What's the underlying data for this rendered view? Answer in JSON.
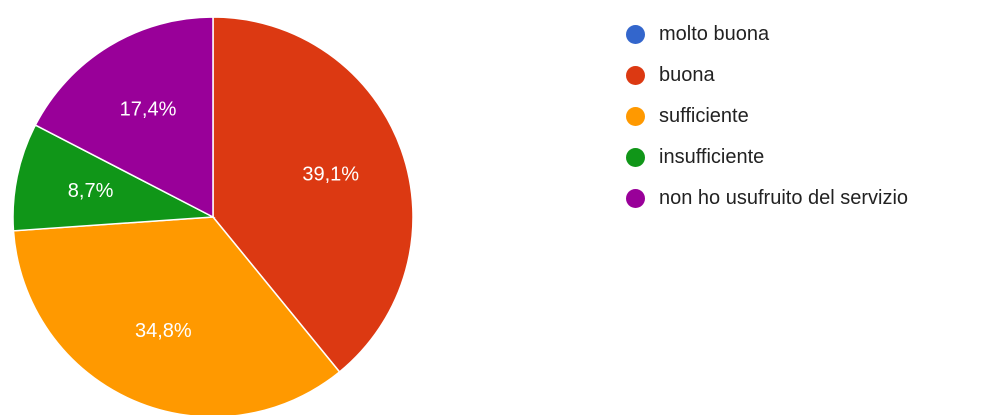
{
  "chart_data": {
    "type": "pie",
    "categories": [
      "molto buona",
      "buona",
      "sufficiente",
      "insufficiente",
      "non ho usufruito del servizio"
    ],
    "values": [
      0,
      39.1,
      34.8,
      8.7,
      17.4
    ],
    "value_labels": [
      "",
      "39,1%",
      "34,8%",
      "8,7%",
      "17,4%"
    ],
    "colors": [
      "#3366cc",
      "#dc3912",
      "#ff9900",
      "#109618",
      "#990099"
    ],
    "start_angle_deg": 90,
    "direction": "clockwise",
    "legend_position": "right",
    "title": ""
  },
  "legend": {
    "items": [
      {
        "label": "molto buona",
        "color": "#3366cc",
        "icon": "circle-swatch"
      },
      {
        "label": "buona",
        "color": "#dc3912",
        "icon": "circle-swatch"
      },
      {
        "label": "sufficiente",
        "color": "#ff9900",
        "icon": "circle-swatch"
      },
      {
        "label": "insufficiente",
        "color": "#109618",
        "icon": "circle-swatch"
      },
      {
        "label": "non ho usufruito del servizio",
        "color": "#990099",
        "icon": "circle-swatch"
      }
    ]
  }
}
